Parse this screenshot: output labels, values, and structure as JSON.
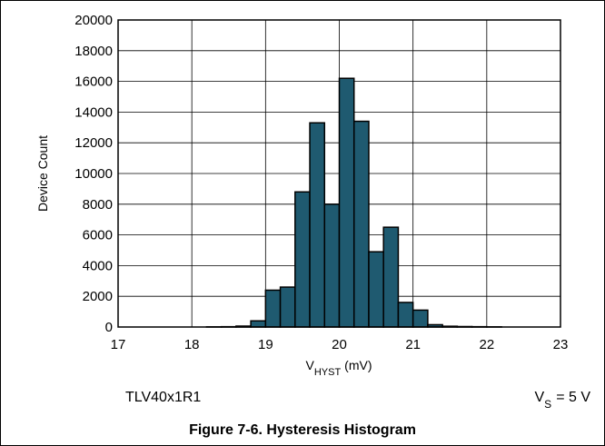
{
  "chart_data": {
    "type": "histogram",
    "ylabel": "Device Count",
    "xlabel": {
      "main": "V",
      "sub": "HYST",
      "unit": "(mV)"
    },
    "annotations": {
      "device": "TLV40x1R1",
      "supply": {
        "main": "V",
        "sub": "S",
        "rest": "= 5 V"
      }
    },
    "caption": "Figure 7-6. Hysteresis Histogram",
    "bins": [
      17,
      17.2,
      17.4,
      17.6,
      17.8,
      18,
      18.2,
      18.4,
      18.6,
      18.8,
      19,
      19.2,
      19.4,
      19.6,
      19.8,
      20,
      20.2,
      20.4,
      20.6,
      20.8,
      21,
      21.2,
      21.4,
      21.6,
      21.8,
      22,
      22.2,
      22.4,
      22.6,
      22.8,
      23
    ],
    "values": [
      0,
      0,
      0,
      0,
      0,
      0,
      10,
      20,
      60,
      400,
      2400,
      2600,
      8800,
      13300,
      8000,
      16200,
      13400,
      4900,
      6500,
      1600,
      1100,
      150,
      50,
      30,
      20,
      10,
      0,
      0,
      0,
      0
    ],
    "color": "#1f5a70",
    "xlim": [
      17,
      23
    ],
    "xticks": [
      17,
      18,
      19,
      20,
      21,
      22,
      23
    ],
    "ylim": [
      0,
      20000
    ],
    "yticks": [
      0,
      2000,
      4000,
      6000,
      8000,
      10000,
      12000,
      14000,
      16000,
      18000,
      20000
    ],
    "grid": true
  }
}
